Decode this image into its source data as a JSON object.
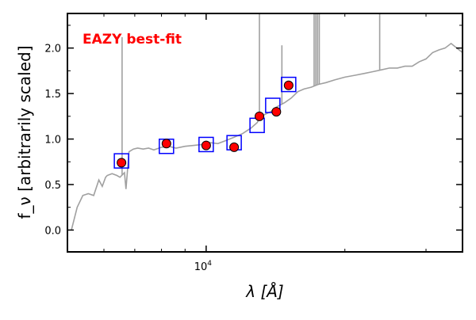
{
  "chart_data": {
    "type": "scatter",
    "annotation": "EAZY best-fit",
    "annotation_color": "#ff0000",
    "xlabel": "λ [Å]",
    "ylabel": "f_ν [arbitrarily scaled]",
    "xscale": "log",
    "xlim": [
      5000,
      36000
    ],
    "ylim": [
      -0.24,
      2.38
    ],
    "x_tick_labels": [
      {
        "value": 10000,
        "base": "10",
        "exp": "4"
      }
    ],
    "y_ticks": [
      0.0,
      0.5,
      1.0,
      1.5,
      2.0
    ],
    "y_tick_labels": [
      "0.0",
      "0.5",
      "1.0",
      "1.5",
      "2.0"
    ],
    "colors": {
      "sed": "#a0a0a0",
      "model_box": "#0000ff",
      "observed": "#ff0000",
      "observed_edge": "#000000"
    },
    "series": [
      {
        "name": "Best-fit SED",
        "kind": "line",
        "x": [
          5100,
          5250,
          5400,
          5550,
          5700,
          5850,
          5950,
          6050,
          6100,
          6250,
          6400,
          6500,
          6650,
          6700,
          6800,
          6950,
          7100,
          7300,
          7500,
          7700,
          8000,
          8300,
          8600,
          9000,
          9400,
          9800,
          10200,
          10600,
          11000,
          11500,
          12000,
          12500,
          12900,
          13100,
          13400,
          13800,
          14200,
          14800,
          15300,
          15800,
          16300,
          16900,
          17500,
          18200,
          19000,
          20000,
          21000,
          22000,
          23000,
          24000,
          25000,
          26000,
          27000,
          28000,
          29000,
          30000,
          31000,
          32000,
          33000,
          34000,
          35000,
          36000
        ],
        "y": [
          0.0,
          0.25,
          0.38,
          0.4,
          0.38,
          0.55,
          0.48,
          0.58,
          0.6,
          0.62,
          0.6,
          0.58,
          0.63,
          0.45,
          0.86,
          0.89,
          0.9,
          0.89,
          0.9,
          0.88,
          0.91,
          0.92,
          0.9,
          0.92,
          0.93,
          0.94,
          0.96,
          0.95,
          0.98,
          1.02,
          1.06,
          1.12,
          1.18,
          1.24,
          1.27,
          1.3,
          1.35,
          1.4,
          1.45,
          1.52,
          1.55,
          1.57,
          1.6,
          1.62,
          1.65,
          1.68,
          1.7,
          1.72,
          1.74,
          1.76,
          1.78,
          1.78,
          1.8,
          1.8,
          1.85,
          1.88,
          1.95,
          1.98,
          2.0,
          2.05,
          2.0,
          1.95
        ]
      },
      {
        "name": "Emission lines",
        "kind": "spikes",
        "x": [
          6570,
          13050,
          14600,
          17150,
          17300,
          17450,
          17600,
          23800
        ],
        "y_top": [
          2.12,
          2.38,
          2.03,
          2.38,
          2.38,
          2.38,
          2.38,
          2.38
        ]
      },
      {
        "name": "Model photometry",
        "kind": "boxes",
        "x": [
          6550,
          8200,
          10000,
          11500,
          12900,
          13950,
          15100
        ],
        "y": [
          0.76,
          0.92,
          0.94,
          0.96,
          1.15,
          1.37,
          1.6
        ]
      },
      {
        "name": "Observed photometry",
        "kind": "points",
        "x": [
          6550,
          8200,
          10000,
          11500,
          13050,
          14200,
          15100
        ],
        "y": [
          0.74,
          0.95,
          0.93,
          0.91,
          1.25,
          1.3,
          1.59
        ],
        "yerr": [
          0.02,
          0.02,
          0.02,
          0.02,
          0.05,
          0.04,
          0.03
        ]
      }
    ]
  }
}
